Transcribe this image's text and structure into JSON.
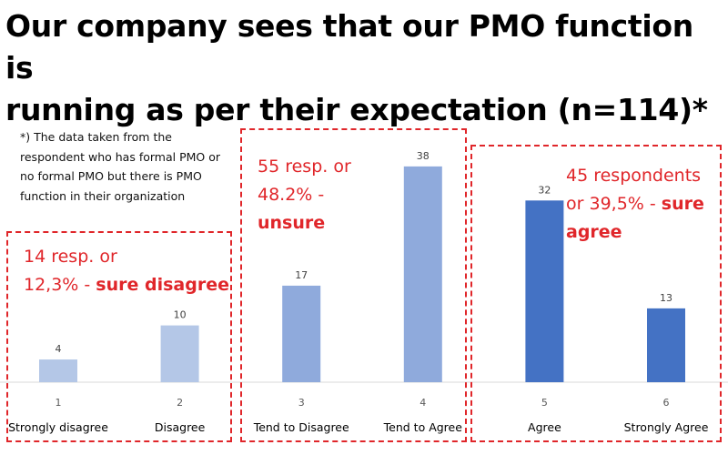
{
  "title_line1": "Our company sees that our PMO function is",
  "title_line2": "running as per their expectation (n=114)*",
  "note": "*) The data taken from the respondent who has formal PMO or no formal PMO but there is PMO function in their organization",
  "groups": [
    {
      "line1": "14 resp. or",
      "line2": "12,3% - ",
      "bold": "sure disagree"
    },
    {
      "line1": "55 resp. or",
      "line2": "48.2% -",
      "bold": "unsure"
    },
    {
      "line1": "45 respondents",
      "line2": "or 39,5% - ",
      "bold": "sure agree"
    }
  ],
  "colors": {
    "group_box": "#e0262a",
    "annotation": "#e0262a"
  },
  "chart_data": {
    "type": "bar",
    "categories": [
      "1",
      "2",
      "3",
      "4",
      "5",
      "6"
    ],
    "category_labels": [
      "Strongly disagree",
      "Disagree",
      "Tend to Disagree",
      "Tend to Agree",
      "Agree",
      "Strongly Agree"
    ],
    "values": [
      4,
      10,
      17,
      38,
      32,
      13
    ],
    "bar_colors": [
      "#b4c7e7",
      "#b4c7e7",
      "#8faadc",
      "#8faadc",
      "#4472c4",
      "#4472c4"
    ],
    "data_labels": true,
    "grid": false,
    "title": "",
    "xlabel": "",
    "ylabel": ""
  }
}
